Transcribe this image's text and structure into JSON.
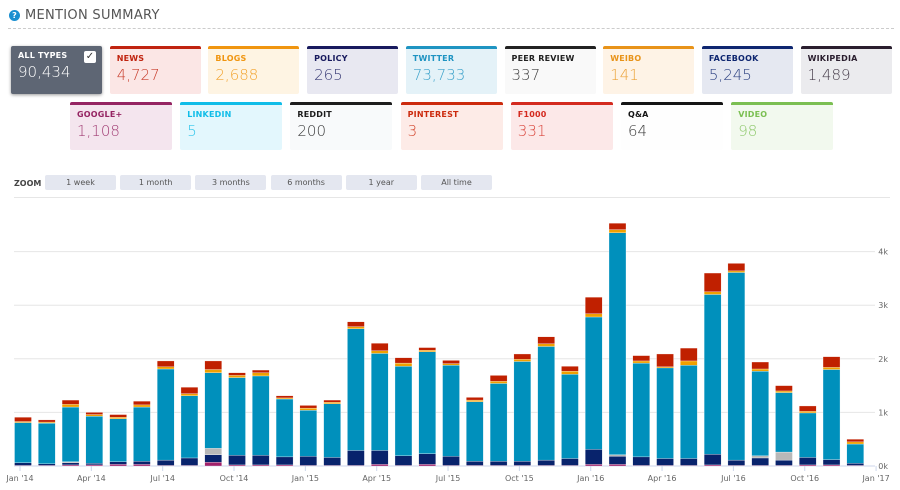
{
  "header": {
    "title": "MENTION SUMMARY",
    "icon": "question-circle-icon"
  },
  "cards_row1": [
    {
      "label": "ALL TYPES",
      "value": "90,434",
      "color": "#5e6674",
      "selected": true
    },
    {
      "label": "NEWS",
      "value": "4,727",
      "color": "#c0230f",
      "bg": "#fbe6e5"
    },
    {
      "label": "BLOGS",
      "value": "2,688",
      "color": "#f0950f",
      "bg": "#fef4e3"
    },
    {
      "label": "POLICY",
      "value": "265",
      "color": "#181a5e",
      "bg": "#e8e8f1"
    },
    {
      "label": "TWITTER",
      "value": "73,733",
      "color": "#1e94c2",
      "bg": "#e4f2f8"
    },
    {
      "label": "PEER REVIEW",
      "value": "337",
      "color": "#222",
      "bg": "#f9f9f9"
    },
    {
      "label": "WEIBO",
      "value": "141",
      "color": "#e89319",
      "bg": "#fef3e6"
    },
    {
      "label": "FACEBOOK",
      "value": "5,245",
      "color": "#0e2670",
      "bg": "#e5e8f1"
    },
    {
      "label": "WIKIPEDIA",
      "value": "1,489",
      "color": "#2a1e2e",
      "bg": "#ebebee"
    }
  ],
  "cards_row2": [
    {
      "label": "GOOGLE+",
      "value": "1,108",
      "color": "#952462",
      "bg": "#f4e5ee"
    },
    {
      "label": "LINKEDIN",
      "value": "5",
      "color": "#10bde8",
      "bg": "#e3f7fd"
    },
    {
      "label": "REDDIT",
      "value": "200",
      "color": "#1d1d1d",
      "bg": "#f8fafb"
    },
    {
      "label": "PINTEREST",
      "value": "3",
      "color": "#cc2a0d",
      "bg": "#fdebe7"
    },
    {
      "label": "F1000",
      "value": "331",
      "color": "#d42a1f",
      "bg": "#fce8e8"
    },
    {
      "label": "Q&A",
      "value": "64",
      "color": "#151515",
      "bg": "#fefefe"
    },
    {
      "label": "VIDEO",
      "value": "98",
      "color": "#7bbf52",
      "bg": "#f2f9ee"
    }
  ],
  "zoom": {
    "label": "ZOOM",
    "buttons": [
      "1 week",
      "1 month",
      "3 months",
      "6 months",
      "1 year",
      "All time"
    ]
  },
  "chart_data": {
    "type": "bar",
    "stacked": true,
    "categories": [
      "Jan '14",
      "Feb '14",
      "Mar '14",
      "Apr '14",
      "May '14",
      "Jun '14",
      "Jul '14",
      "Aug '14",
      "Sep '14",
      "Oct '14",
      "Nov '14",
      "Dec '14",
      "Jan '15",
      "Feb '15",
      "Mar '15",
      "Apr '15",
      "May '15",
      "Jun '15",
      "Jul '15",
      "Aug '15",
      "Sep '15",
      "Oct '15",
      "Nov '15",
      "Dec '15",
      "Jan '16",
      "Feb '16",
      "Mar '16",
      "Apr '16",
      "May '16",
      "Jun '16",
      "Jul '16",
      "Aug '16",
      "Sep '16",
      "Oct '16",
      "Nov '16",
      "Dec '16"
    ],
    "x_tick_labels": [
      "Jan '14",
      "Apr '14",
      "Jul '14",
      "Oct '14",
      "Jan '15",
      "Apr '15",
      "Jul '15",
      "Oct '15",
      "Jan '16",
      "Apr '16",
      "Jul '16",
      "Oct '16",
      "Jan '17"
    ],
    "y_tick_labels": [
      "0k",
      "1k",
      "2k",
      "3k",
      "4k"
    ],
    "ylim": [
      0,
      5000
    ],
    "grid": true,
    "series": [
      {
        "key": "googleplus",
        "color": "#a0206a",
        "values": [
          10,
          10,
          20,
          20,
          30,
          30,
          10,
          10,
          70,
          20,
          20,
          20,
          10,
          10,
          10,
          30,
          10,
          30,
          10,
          10,
          10,
          10,
          10,
          10,
          30,
          30,
          10,
          10,
          10,
          20,
          10,
          10,
          10,
          20,
          20,
          10
        ]
      },
      {
        "key": "facebook",
        "color": "#08236c",
        "values": [
          50,
          30,
          40,
          30,
          50,
          60,
          100,
          140,
          140,
          180,
          180,
          150,
          170,
          150,
          280,
          260,
          180,
          200,
          170,
          80,
          80,
          80,
          100,
          130,
          280,
          150,
          160,
          130,
          130,
          200,
          100,
          140,
          100,
          140,
          100,
          40
        ]
      },
      {
        "key": "other",
        "color": "#b8b8b8",
        "values": [
          0,
          0,
          20,
          0,
          0,
          0,
          0,
          0,
          120,
          0,
          0,
          0,
          0,
          0,
          0,
          0,
          0,
          0,
          0,
          0,
          0,
          0,
          0,
          0,
          0,
          30,
          0,
          0,
          0,
          0,
          0,
          40,
          150,
          0,
          0,
          0
        ]
      },
      {
        "key": "twitter",
        "color": "#0090bc",
        "values": [
          750,
          760,
          1020,
          880,
          800,
          1010,
          1700,
          1160,
          1410,
          1450,
          1480,
          1080,
          860,
          1000,
          2270,
          1810,
          1670,
          1900,
          1700,
          1110,
          1450,
          1860,
          2120,
          1570,
          2470,
          4140,
          1750,
          1690,
          1740,
          2980,
          3500,
          1580,
          1110,
          830,
          1680,
          360
        ]
      },
      {
        "key": "blogs",
        "color": "#f0a000",
        "values": [
          20,
          20,
          50,
          30,
          30,
          40,
          40,
          40,
          60,
          40,
          60,
          20,
          40,
          30,
          40,
          50,
          60,
          30,
          30,
          30,
          40,
          40,
          50,
          60,
          60,
          60,
          40,
          20,
          80,
          50,
          30,
          40,
          30,
          30,
          40,
          40
        ]
      },
      {
        "key": "news",
        "color": "#c02000",
        "values": [
          80,
          40,
          80,
          40,
          50,
          70,
          110,
          120,
          160,
          50,
          50,
          40,
          50,
          40,
          90,
          140,
          100,
          50,
          60,
          50,
          110,
          100,
          130,
          90,
          310,
          120,
          100,
          240,
          240,
          350,
          140,
          130,
          100,
          100,
          200,
          50
        ]
      }
    ]
  }
}
